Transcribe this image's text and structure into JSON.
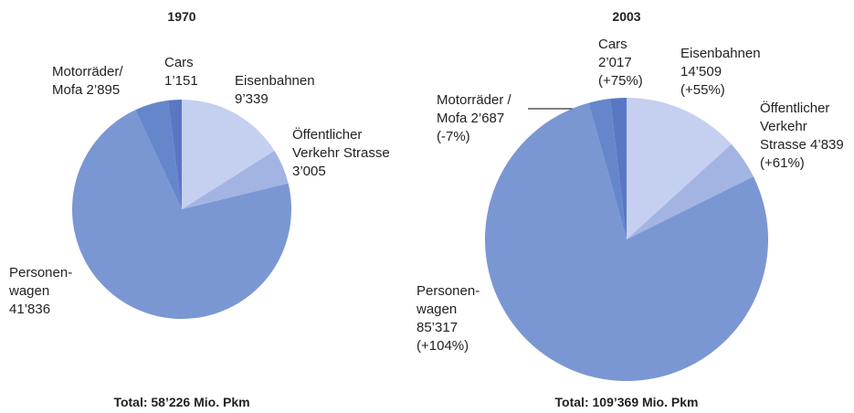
{
  "chart_data": [
    {
      "type": "pie",
      "title": "1970",
      "categories": [
        "Eisenbahnen",
        "Öffentlicher Verkehr Strasse",
        "Personen­wagen",
        "Motorräder/ Mofa",
        "Cars"
      ],
      "values": [
        9339,
        3005,
        41836,
        2895,
        1151
      ],
      "value_labels": [
        "9’339",
        "3’005",
        "41’836",
        "2’895",
        "1’151"
      ],
      "colors": [
        "#c5d0f0",
        "#a3b4e3",
        "#7a97d4",
        "#6686cc",
        "#5a77c4"
      ],
      "note": "Total: 58’226 Mio. Pkm"
    },
    {
      "type": "pie",
      "title": "2003",
      "categories": [
        "Eisenbahnen",
        "Öffentlicher Verkehr Strasse",
        "Personen­wagen",
        "Motorräder / Mofa",
        "Cars"
      ],
      "values": [
        14509,
        4839,
        85317,
        2687,
        2017
      ],
      "value_labels": [
        "14’509",
        "4’839",
        "85’317",
        "2’687",
        "2’017"
      ],
      "change_labels": [
        "(+55%)",
        "(+61%)",
        "(+104%)",
        "(-7%)",
        "(+75%)"
      ],
      "colors": [
        "#c5d0f0",
        "#a3b4e3",
        "#7a97d4",
        "#6686cc",
        "#5a77c4"
      ],
      "note": "Total: 109’369 Mio. Pkm"
    }
  ]
}
